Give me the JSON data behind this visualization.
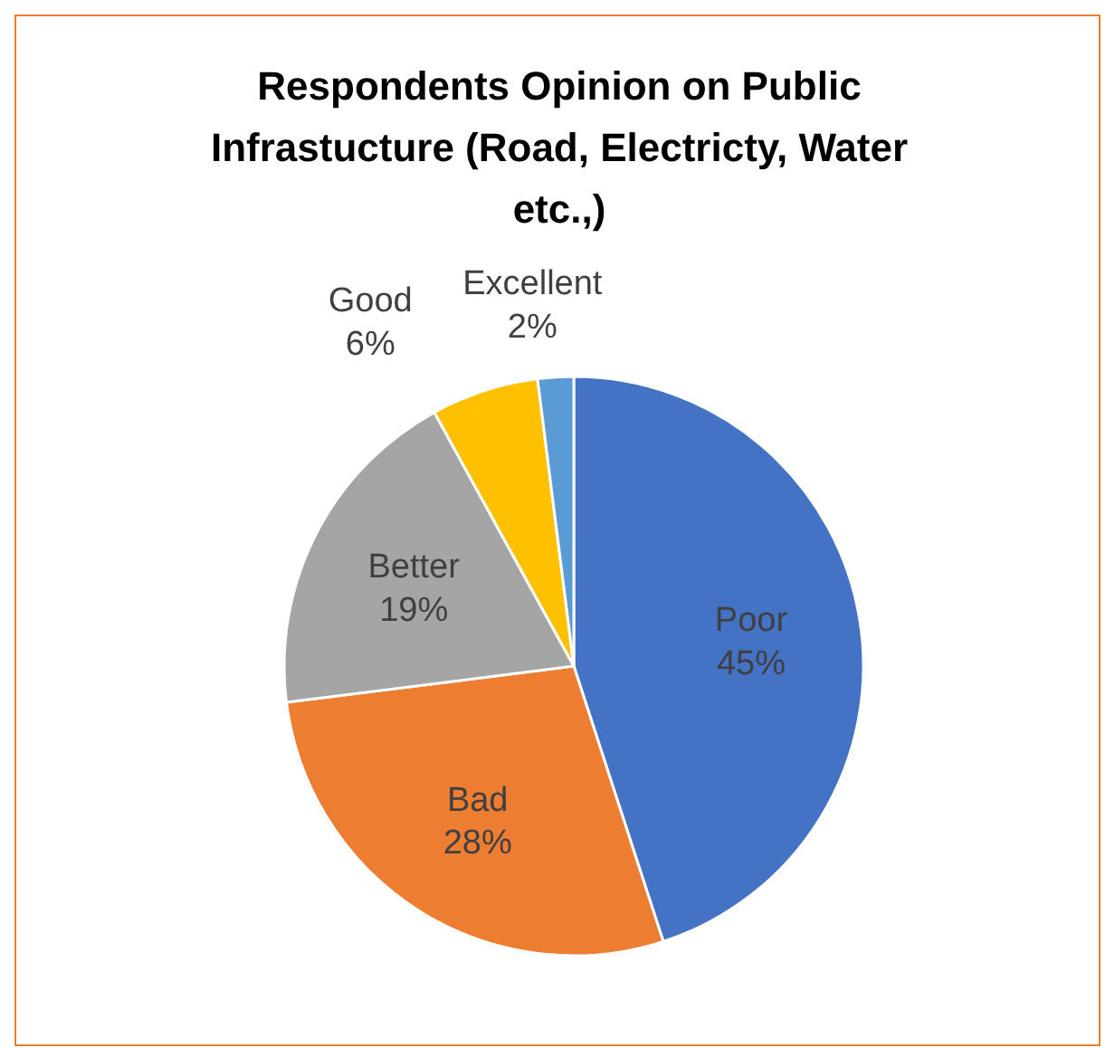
{
  "chart_data": {
    "type": "pie",
    "title": "Respondents Opinion on Public Infrastucture (Road, Electricty, Water etc.,)",
    "categories": [
      "Poor",
      "Bad",
      "Better",
      "Good",
      "Excellent"
    ],
    "values": [
      45,
      28,
      19,
      6,
      2
    ],
    "colors": [
      "#4472c4",
      "#ed7d31",
      "#a5a5a5",
      "#ffc000",
      "#5b9bd5"
    ],
    "value_labels": [
      "45%",
      "28%",
      "19%",
      "6%",
      "2%"
    ],
    "legend": false
  }
}
